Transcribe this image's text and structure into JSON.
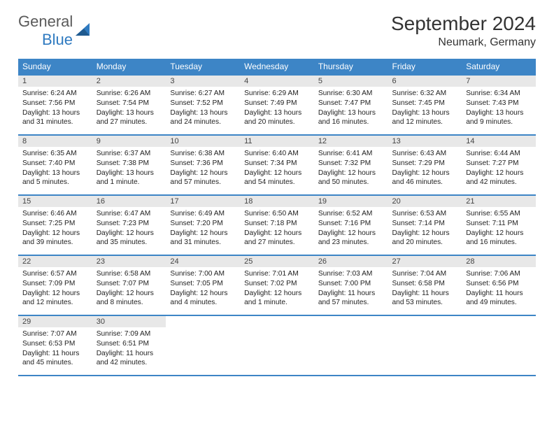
{
  "logo": {
    "gen": "General",
    "blue": "Blue"
  },
  "title": "September 2024",
  "location": "Neumark, Germany",
  "colors": {
    "header_bg": "#3d85c6",
    "header_text": "#ffffff",
    "daynum_bg": "#e8e8e8",
    "row_border": "#3d85c6",
    "body_bg": "#ffffff",
    "logo_gray": "#5a5a5a",
    "logo_blue": "#2f7ac0"
  },
  "weekdays": [
    "Sunday",
    "Monday",
    "Tuesday",
    "Wednesday",
    "Thursday",
    "Friday",
    "Saturday"
  ],
  "weeks": [
    [
      {
        "n": "1",
        "sr": "Sunrise: 6:24 AM",
        "ss": "Sunset: 7:56 PM",
        "dl": "Daylight: 13 hours and 31 minutes."
      },
      {
        "n": "2",
        "sr": "Sunrise: 6:26 AM",
        "ss": "Sunset: 7:54 PM",
        "dl": "Daylight: 13 hours and 27 minutes."
      },
      {
        "n": "3",
        "sr": "Sunrise: 6:27 AM",
        "ss": "Sunset: 7:52 PM",
        "dl": "Daylight: 13 hours and 24 minutes."
      },
      {
        "n": "4",
        "sr": "Sunrise: 6:29 AM",
        "ss": "Sunset: 7:49 PM",
        "dl": "Daylight: 13 hours and 20 minutes."
      },
      {
        "n": "5",
        "sr": "Sunrise: 6:30 AM",
        "ss": "Sunset: 7:47 PM",
        "dl": "Daylight: 13 hours and 16 minutes."
      },
      {
        "n": "6",
        "sr": "Sunrise: 6:32 AM",
        "ss": "Sunset: 7:45 PM",
        "dl": "Daylight: 13 hours and 12 minutes."
      },
      {
        "n": "7",
        "sr": "Sunrise: 6:34 AM",
        "ss": "Sunset: 7:43 PM",
        "dl": "Daylight: 13 hours and 9 minutes."
      }
    ],
    [
      {
        "n": "8",
        "sr": "Sunrise: 6:35 AM",
        "ss": "Sunset: 7:40 PM",
        "dl": "Daylight: 13 hours and 5 minutes."
      },
      {
        "n": "9",
        "sr": "Sunrise: 6:37 AM",
        "ss": "Sunset: 7:38 PM",
        "dl": "Daylight: 13 hours and 1 minute."
      },
      {
        "n": "10",
        "sr": "Sunrise: 6:38 AM",
        "ss": "Sunset: 7:36 PM",
        "dl": "Daylight: 12 hours and 57 minutes."
      },
      {
        "n": "11",
        "sr": "Sunrise: 6:40 AM",
        "ss": "Sunset: 7:34 PM",
        "dl": "Daylight: 12 hours and 54 minutes."
      },
      {
        "n": "12",
        "sr": "Sunrise: 6:41 AM",
        "ss": "Sunset: 7:32 PM",
        "dl": "Daylight: 12 hours and 50 minutes."
      },
      {
        "n": "13",
        "sr": "Sunrise: 6:43 AM",
        "ss": "Sunset: 7:29 PM",
        "dl": "Daylight: 12 hours and 46 minutes."
      },
      {
        "n": "14",
        "sr": "Sunrise: 6:44 AM",
        "ss": "Sunset: 7:27 PM",
        "dl": "Daylight: 12 hours and 42 minutes."
      }
    ],
    [
      {
        "n": "15",
        "sr": "Sunrise: 6:46 AM",
        "ss": "Sunset: 7:25 PM",
        "dl": "Daylight: 12 hours and 39 minutes."
      },
      {
        "n": "16",
        "sr": "Sunrise: 6:47 AM",
        "ss": "Sunset: 7:23 PM",
        "dl": "Daylight: 12 hours and 35 minutes."
      },
      {
        "n": "17",
        "sr": "Sunrise: 6:49 AM",
        "ss": "Sunset: 7:20 PM",
        "dl": "Daylight: 12 hours and 31 minutes."
      },
      {
        "n": "18",
        "sr": "Sunrise: 6:50 AM",
        "ss": "Sunset: 7:18 PM",
        "dl": "Daylight: 12 hours and 27 minutes."
      },
      {
        "n": "19",
        "sr": "Sunrise: 6:52 AM",
        "ss": "Sunset: 7:16 PM",
        "dl": "Daylight: 12 hours and 23 minutes."
      },
      {
        "n": "20",
        "sr": "Sunrise: 6:53 AM",
        "ss": "Sunset: 7:14 PM",
        "dl": "Daylight: 12 hours and 20 minutes."
      },
      {
        "n": "21",
        "sr": "Sunrise: 6:55 AM",
        "ss": "Sunset: 7:11 PM",
        "dl": "Daylight: 12 hours and 16 minutes."
      }
    ],
    [
      {
        "n": "22",
        "sr": "Sunrise: 6:57 AM",
        "ss": "Sunset: 7:09 PM",
        "dl": "Daylight: 12 hours and 12 minutes."
      },
      {
        "n": "23",
        "sr": "Sunrise: 6:58 AM",
        "ss": "Sunset: 7:07 PM",
        "dl": "Daylight: 12 hours and 8 minutes."
      },
      {
        "n": "24",
        "sr": "Sunrise: 7:00 AM",
        "ss": "Sunset: 7:05 PM",
        "dl": "Daylight: 12 hours and 4 minutes."
      },
      {
        "n": "25",
        "sr": "Sunrise: 7:01 AM",
        "ss": "Sunset: 7:02 PM",
        "dl": "Daylight: 12 hours and 1 minute."
      },
      {
        "n": "26",
        "sr": "Sunrise: 7:03 AM",
        "ss": "Sunset: 7:00 PM",
        "dl": "Daylight: 11 hours and 57 minutes."
      },
      {
        "n": "27",
        "sr": "Sunrise: 7:04 AM",
        "ss": "Sunset: 6:58 PM",
        "dl": "Daylight: 11 hours and 53 minutes."
      },
      {
        "n": "28",
        "sr": "Sunrise: 7:06 AM",
        "ss": "Sunset: 6:56 PM",
        "dl": "Daylight: 11 hours and 49 minutes."
      }
    ],
    [
      {
        "n": "29",
        "sr": "Sunrise: 7:07 AM",
        "ss": "Sunset: 6:53 PM",
        "dl": "Daylight: 11 hours and 45 minutes."
      },
      {
        "n": "30",
        "sr": "Sunrise: 7:09 AM",
        "ss": "Sunset: 6:51 PM",
        "dl": "Daylight: 11 hours and 42 minutes."
      },
      null,
      null,
      null,
      null,
      null
    ]
  ]
}
